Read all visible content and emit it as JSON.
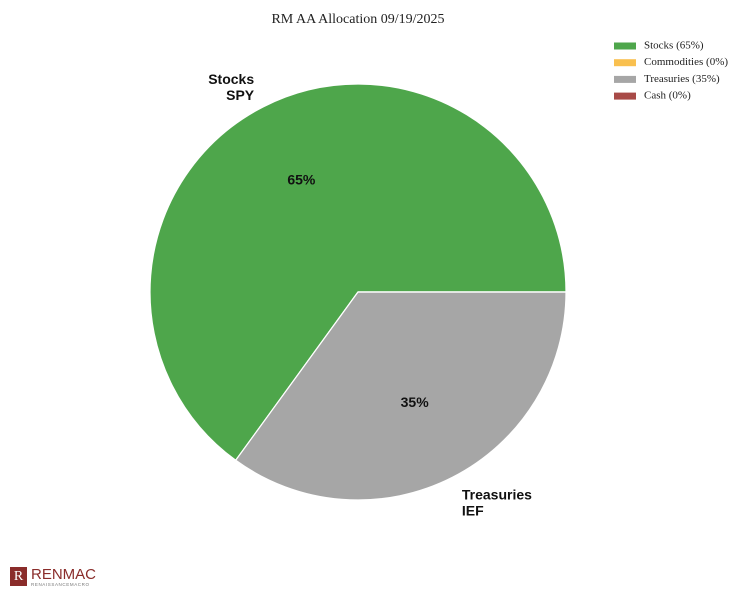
{
  "chart_data": {
    "type": "pie",
    "title": "RM AA Allocation 09/19/2025",
    "categories": [
      "Stocks",
      "Commodities",
      "Treasuries",
      "Cash"
    ],
    "values": [
      65,
      0,
      35,
      0
    ],
    "value_labels": [
      "65%",
      null,
      "35%",
      null
    ],
    "legend_labels": [
      "Stocks (65%)",
      "Commodities (0%)",
      "Treasuries (35%)",
      "Cash (0%)"
    ],
    "outer_labels": [
      [
        "Stocks",
        "SPY"
      ],
      null,
      [
        "Treasuries",
        "IEF"
      ],
      null
    ],
    "colors": [
      "#4ea64b",
      "#f9c04f",
      "#a6a6a6",
      "#a84a47"
    ],
    "legend": "upper right"
  },
  "logo": {
    "name": "RENMAC",
    "tagline": "RENAISSANCEMACRO"
  }
}
